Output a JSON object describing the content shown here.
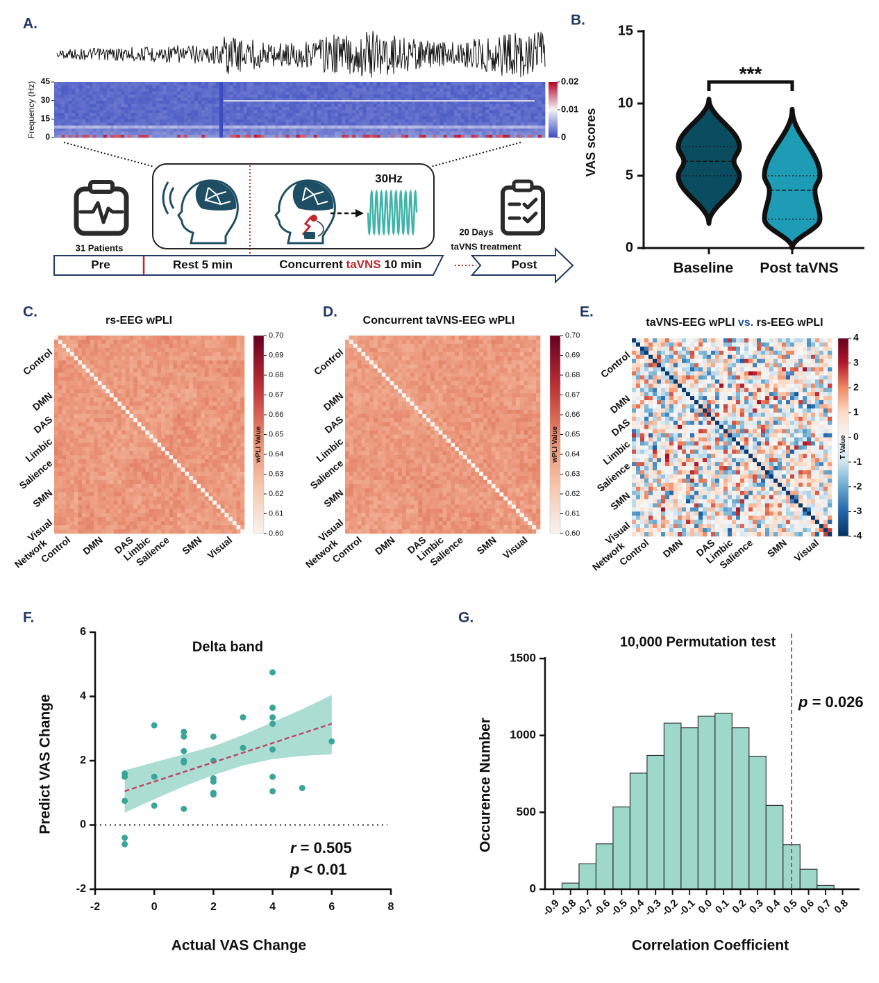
{
  "figure": {
    "panel_labels": [
      "A.",
      "B.",
      "C.",
      "D.",
      "E.",
      "F.",
      "G."
    ]
  },
  "diagram": {
    "patients": "31 Patients",
    "frequency": "30Hz",
    "interval": "20 Days",
    "interval_note": "taVNS treatment",
    "timeline": {
      "pre": "Pre",
      "rest": "Rest 5 min",
      "concurrent": [
        "Concurrent ",
        "taVNS",
        " 10 min"
      ],
      "post": "Post"
    }
  },
  "chart_data": [
    {
      "type": "spectrogram",
      "ylabel": "Frequency (Hz)",
      "ylim": [
        0,
        45
      ],
      "yticks": [
        0,
        15,
        30,
        45
      ],
      "zlim": [
        0,
        0.02
      ],
      "zticks": [
        0,
        0.01,
        0.02
      ],
      "colormap": [
        "#3b4cc0",
        "#f4f4f6",
        "#b40426"
      ]
    },
    {
      "type": "violin",
      "ylabel": "VAS scores",
      "categories": [
        "Baseline",
        "Post taVNS"
      ],
      "ylim": [
        0,
        15
      ],
      "yticks": [
        0,
        5,
        10,
        15
      ],
      "colors": [
        "#0b4d60",
        "#1e9bb5"
      ],
      "min": [
        1.7,
        0
      ],
      "q1": [
        5,
        2
      ],
      "median": [
        6,
        4
      ],
      "q3": [
        7,
        5
      ],
      "max": [
        10.3,
        9.6
      ],
      "annotation": "***"
    },
    {
      "type": "heatmap",
      "title": "rs-EEG wPLI",
      "row_labels": [
        "Control",
        "DMN",
        "DAS",
        "Limbic",
        "Salience",
        "SMN",
        "Visual"
      ],
      "col_labels": [
        "Control",
        "DMN",
        "DAS",
        "Limbic",
        "Salience",
        "SMN",
        "Visual"
      ],
      "corner_label": "Network",
      "colorbar_label": "wPLI Value",
      "zlim": [
        0.6,
        0.7
      ],
      "zticks": [
        {
          "value": 0.6,
          "label": "0.60"
        },
        0.61,
        0.62,
        0.63,
        0.64,
        0.65,
        0.66,
        0.67,
        0.68,
        0.69,
        {
          "value": 0.7,
          "label": "0.70"
        }
      ],
      "colormap": [
        "#f7f4f2",
        "#f6c3a8",
        "#e6866a",
        "#b92f35",
        "#67001f"
      ]
    },
    {
      "type": "heatmap",
      "title": "Concurrent taVNS-EEG wPLI",
      "row_labels": [
        "Control",
        "DMN",
        "DAS",
        "Limbic",
        "Salience",
        "SMN",
        "Visual"
      ],
      "col_labels": [
        "Control",
        "DMN",
        "DAS",
        "Limbic",
        "Salience",
        "SMN",
        "Visual"
      ],
      "corner_label": "Network",
      "colorbar_label": "wPLI Value",
      "zlim": [
        0.6,
        0.7
      ],
      "zticks": [
        {
          "value": 0.6,
          "label": "0.60"
        },
        0.61,
        0.62,
        0.63,
        0.64,
        0.65,
        0.66,
        0.67,
        0.68,
        0.69,
        {
          "value": 0.7,
          "label": "0.70"
        }
      ],
      "colormap": [
        "#f7f4f2",
        "#f6c3a8",
        "#e6866a",
        "#b92f35",
        "#67001f"
      ]
    },
    {
      "type": "heatmap",
      "title": [
        "taVNS-EEG wPLI ",
        "vs.",
        " rs-EEG wPLI"
      ],
      "title_colors": [
        "#111111",
        "#1f4e9c",
        "#111111"
      ],
      "row_labels": [
        "Control",
        "DMN",
        "DAS",
        "Limbic",
        "Salience",
        "SMN",
        "Visual"
      ],
      "col_labels": [
        "Control",
        "DMN",
        "DAS",
        "Limbic",
        "Salience",
        "SMN",
        "Visual"
      ],
      "corner_label": "Network",
      "colorbar_label": "T Value",
      "zlim": [
        -4,
        4
      ],
      "zticks": [
        -4,
        -3,
        -2,
        -1,
        0,
        1,
        2,
        3,
        4
      ],
      "diverging": true,
      "colormap": [
        "#053061",
        "#2166ac",
        "#67a9cf",
        "#d1e5f0",
        "#f7f7f7",
        "#fddbc7",
        "#ef8a62",
        "#b2182b",
        "#67001f"
      ]
    },
    {
      "type": "scatter",
      "title": "Delta band",
      "xlabel": "Actual VAS Change",
      "ylabel": "Predict VAS Change",
      "xlim": [
        -2,
        8
      ],
      "xticks": [
        -2,
        0,
        2,
        4,
        6,
        8
      ],
      "ylim": [
        -2,
        6
      ],
      "yticks": [
        -2,
        0,
        2,
        4,
        6
      ],
      "x": [
        -1,
        -1,
        -1,
        -1,
        -1,
        0,
        0,
        0,
        1,
        1,
        1,
        1,
        1,
        1,
        2,
        2,
        2,
        2,
        2,
        2,
        3,
        3,
        4,
        4,
        4,
        4,
        4,
        4,
        4,
        5,
        6
      ],
      "y": [
        1.6,
        1.5,
        0.75,
        -0.4,
        -0.6,
        3.1,
        1.5,
        0.6,
        2.9,
        2.75,
        2.3,
        2.0,
        1.95,
        0.5,
        2.75,
        2.0,
        1.45,
        1.35,
        1.0,
        0.95,
        3.35,
        2.4,
        4.75,
        3.65,
        3.35,
        3.15,
        2.35,
        1.5,
        1.05,
        1.15,
        2.6
      ],
      "color": "#3aa598",
      "fit": {
        "x": [
          -1,
          6
        ],
        "y": [
          1.05,
          3.15
        ],
        "color": "#c2476b"
      },
      "ci": {
        "x": [
          -1,
          0,
          1,
          2,
          3,
          4,
          5,
          6
        ],
        "upper": [
          1.7,
          1.95,
          2.2,
          2.45,
          2.8,
          3.2,
          3.6,
          4.05
        ],
        "lower": [
          0.38,
          0.8,
          1.2,
          1.55,
          1.85,
          2.05,
          2.15,
          2.2
        ],
        "color": "#8fd1c4"
      },
      "reference_line": {
        "y": 0
      },
      "annotation": [
        [
          "r",
          " = 0.505"
        ],
        [
          "p",
          " < 0.01"
        ]
      ]
    },
    {
      "type": "histogram",
      "title": "10,000 Permutation test",
      "xlabel": "Correlation Coefficient",
      "ylabel": "Occurence Number",
      "bins": [
        -0.85,
        -0.75,
        -0.65,
        -0.55,
        -0.45,
        -0.35,
        -0.25,
        -0.15,
        -0.05,
        0.05,
        0.15,
        0.25,
        0.35,
        0.45,
        0.55,
        0.65,
        0.75
      ],
      "values": [
        40,
        165,
        295,
        535,
        755,
        870,
        1080,
        1050,
        1125,
        1145,
        1050,
        865,
        545,
        290,
        130,
        25
      ],
      "color": "#9ed8cb",
      "xlim": [
        -0.95,
        0.9
      ],
      "xticks": [
        -0.9,
        -0.8,
        -0.7,
        -0.6,
        -0.5,
        -0.4,
        -0.3,
        -0.2,
        -0.1,
        {
          "value": 0,
          "label": "0.0"
        },
        0.1,
        0.2,
        0.3,
        0.4,
        0.5,
        0.6,
        0.7,
        0.8
      ],
      "ylim": [
        0,
        1500
      ],
      "yticks": [
        0,
        500,
        1000,
        1500
      ],
      "reference_line": {
        "x": 0.5,
        "color": "#c2476b"
      },
      "annotation": [
        "p",
        " = 0.026"
      ]
    }
  ]
}
